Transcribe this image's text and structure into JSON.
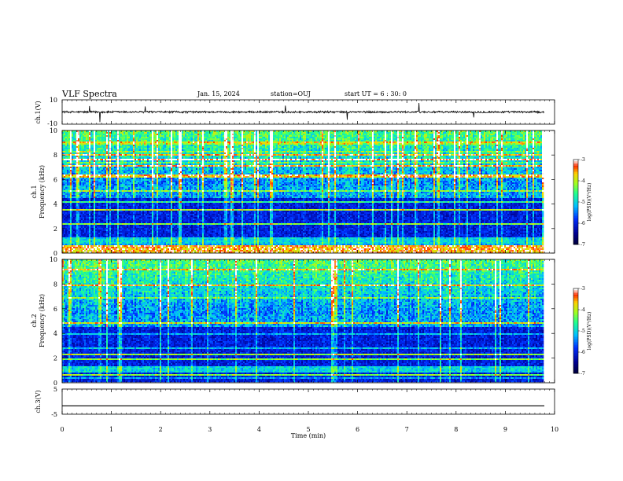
{
  "header": {
    "title": "VLF Spectra",
    "date": "Jan. 15, 2024",
    "station": "station=OUJ",
    "start_ut": "start UT =  6 : 30: 0"
  },
  "chart_data": [
    {
      "type": "line",
      "panel": "ch1-waveform",
      "ylabel": "ch.1(V)",
      "ylim": [
        -10,
        10
      ],
      "yticks": [
        "10",
        "-10"
      ],
      "xlim": [
        0,
        10
      ],
      "baseline": 0,
      "note_level": "noisy waveform around 0 V with spikes"
    },
    {
      "type": "heatmap",
      "panel": "ch1-spectrogram",
      "ylabel": "ch.1 Frequency (kHz)",
      "ylabel_line1": "ch.1",
      "ylabel_line2": "Frequency (kHz)",
      "ylim": [
        0,
        10
      ],
      "yticks": [
        "0",
        "2",
        "4",
        "6",
        "8",
        "10"
      ],
      "xlim": [
        0,
        10
      ],
      "colorbar": {
        "label": "log(PSD)(V²/Hz)",
        "ticks": [
          "-3",
          "-4",
          "-5",
          "-6",
          "-7"
        ],
        "range": [
          -7,
          -3
        ]
      }
    },
    {
      "type": "heatmap",
      "panel": "ch2-spectrogram",
      "ylabel": "ch.2 Frequency (kHz)",
      "ylabel_line1": "ch.2",
      "ylabel_line2": "Frequency (kHz)",
      "ylim": [
        0,
        10
      ],
      "yticks": [
        "0",
        "2",
        "4",
        "6",
        "8",
        "10"
      ],
      "xlim": [
        0,
        10
      ],
      "colorbar": {
        "label": "log(PSD)(V²/Hz)",
        "ticks": [
          "-3",
          "-4",
          "-5",
          "-6",
          "-7"
        ],
        "range": [
          -7,
          -3
        ]
      }
    },
    {
      "type": "line",
      "panel": "ch3-waveform",
      "ylabel": "ch.3(V)",
      "ylim": [
        -5,
        5
      ],
      "yticks": [
        "5",
        "-5"
      ],
      "xlim": [
        0,
        10
      ],
      "baseline": -1.7
    }
  ],
  "xaxis": {
    "label": "Time (min)",
    "ticks": [
      "0",
      "1",
      "2",
      "3",
      "4",
      "5",
      "6",
      "7",
      "8",
      "9",
      "10"
    ]
  }
}
